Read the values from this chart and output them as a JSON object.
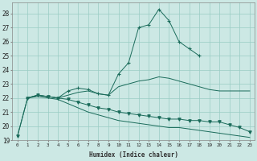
{
  "xlabel": "Humidex (Indice chaleur)",
  "bg_color": "#cce8e4",
  "grid_color": "#99ccc4",
  "line_color": "#1a6b5a",
  "xlim": [
    -0.5,
    23.5
  ],
  "ylim": [
    19,
    28.8
  ],
  "yticks": [
    19,
    20,
    21,
    22,
    23,
    24,
    25,
    26,
    27,
    28
  ],
  "xticks": [
    0,
    1,
    2,
    3,
    4,
    5,
    6,
    7,
    8,
    9,
    10,
    11,
    12,
    13,
    14,
    15,
    16,
    17,
    18,
    19,
    20,
    21,
    22,
    23
  ],
  "lines": [
    {
      "x": [
        1,
        2,
        3,
        4,
        5,
        6,
        7,
        8,
        9,
        10,
        11,
        12,
        13,
        14,
        15,
        16,
        17,
        18
      ],
      "y": [
        22.0,
        22.2,
        22.1,
        22.0,
        22.5,
        22.7,
        22.6,
        22.3,
        22.2,
        23.7,
        24.5,
        27.0,
        27.2,
        28.3,
        27.5,
        26.0,
        25.5,
        25.0
      ],
      "marker": "+"
    },
    {
      "x": [
        1,
        2,
        3,
        4,
        5,
        6,
        7,
        8,
        9,
        10,
        11,
        12,
        13,
        14,
        15,
        16,
        17,
        18,
        19,
        20,
        21,
        22,
        23
      ],
      "y": [
        22.0,
        22.2,
        22.1,
        22.0,
        22.2,
        22.4,
        22.5,
        22.3,
        22.2,
        22.8,
        23.0,
        23.2,
        23.3,
        23.5,
        23.4,
        23.2,
        23.0,
        22.8,
        22.6,
        22.5,
        22.5,
        22.5,
        22.5
      ],
      "marker": null
    },
    {
      "x": [
        0,
        1,
        2,
        3,
        4,
        5,
        6,
        7,
        8,
        9,
        10,
        11,
        12,
        13,
        14,
        15,
        16,
        17,
        18,
        19,
        20,
        21,
        22,
        23
      ],
      "y": [
        19.3,
        22.0,
        22.2,
        22.1,
        22.0,
        21.9,
        21.7,
        21.5,
        21.3,
        21.2,
        21.0,
        20.9,
        20.8,
        20.7,
        20.6,
        20.5,
        20.5,
        20.4,
        20.4,
        20.3,
        20.3,
        20.1,
        19.9,
        19.6
      ],
      "marker": "v"
    },
    {
      "x": [
        0,
        1,
        2,
        3,
        4,
        5,
        6,
        7,
        8,
        9,
        10,
        11,
        12,
        13,
        14,
        15,
        16,
        17,
        18,
        19,
        20,
        21,
        22,
        23
      ],
      "y": [
        19.3,
        22.0,
        22.1,
        22.0,
        21.9,
        21.6,
        21.3,
        21.0,
        20.8,
        20.6,
        20.4,
        20.3,
        20.2,
        20.1,
        20.0,
        19.9,
        19.9,
        19.8,
        19.7,
        19.6,
        19.5,
        19.4,
        19.3,
        19.2
      ],
      "marker": null
    }
  ]
}
